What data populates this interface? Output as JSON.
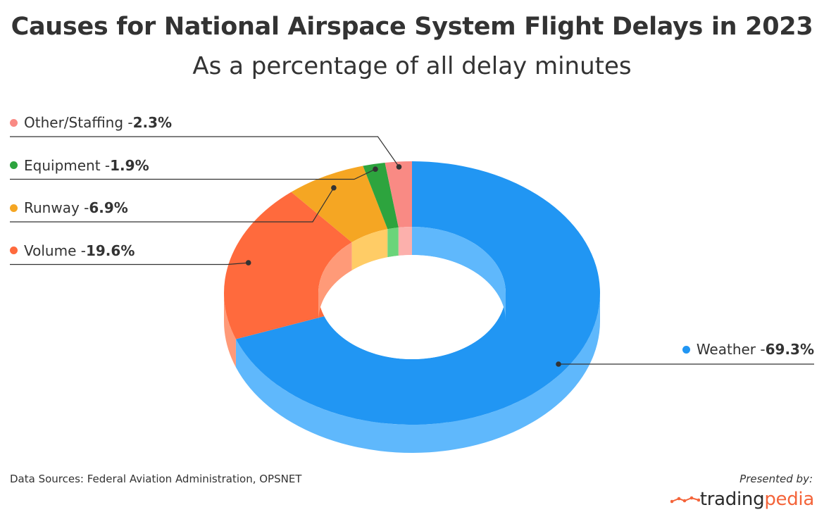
{
  "chart_data": {
    "type": "pie",
    "title": "Causes for National Airspace System Flight Delays in 2023",
    "subtitle": "As a percentage of all delay minutes",
    "slices": [
      {
        "label": "Weather",
        "value": 69.3,
        "value_label": "69.3%",
        "color": "#2196f3",
        "side_color": "#5fb8fc"
      },
      {
        "label": "Volume",
        "value": 19.6,
        "value_label": "19.6%",
        "color": "#ff6a3d",
        "side_color": "#ff9a78"
      },
      {
        "label": "Runway",
        "value": 6.9,
        "value_label": "6.9%",
        "color": "#f5a623",
        "side_color": "#ffcc66"
      },
      {
        "label": "Equipment",
        "value": 1.9,
        "value_label": "1.9%",
        "color": "#2da43e",
        "side_color": "#6bd47a"
      },
      {
        "label": "Other/Staffing",
        "value": 2.3,
        "value_label": "2.3%",
        "color": "#f98a84",
        "side_color": "#fcb0ac"
      }
    ],
    "legend_separator": " - "
  },
  "footer": {
    "source": "Data Sources: Federal Aviation Administration, OPSNET",
    "presented_by": "Presented by:",
    "logo_part1": "trading",
    "logo_part2": "pedia"
  }
}
